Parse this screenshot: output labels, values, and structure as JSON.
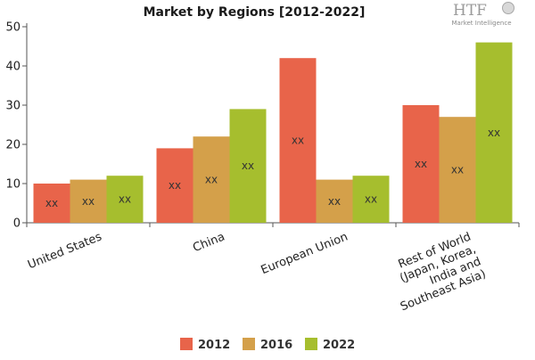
{
  "logo": {
    "mark": "HTF",
    "tagline": "Market Intelligence"
  },
  "chart_data": {
    "type": "bar",
    "title": "Market by Regions [2012-2022]",
    "categories": [
      [
        "United States"
      ],
      [
        "China"
      ],
      [
        "European Union"
      ],
      [
        "Rest of World",
        "(Japan, Korea,",
        "India and",
        "Southeast Asia)"
      ]
    ],
    "series": [
      {
        "name": "2012",
        "color": "#e8644a",
        "values": [
          10,
          19,
          42,
          30
        ],
        "labels": [
          "xx",
          "xx",
          "xx",
          "xx"
        ]
      },
      {
        "name": "2016",
        "color": "#d4a04a",
        "values": [
          11,
          22,
          11,
          27
        ],
        "labels": [
          "xx",
          "xx",
          "xx",
          "xx"
        ]
      },
      {
        "name": "2022",
        "color": "#a6be2e",
        "values": [
          12,
          29,
          12,
          46
        ],
        "labels": [
          "xx",
          "xx",
          "xx",
          "xx"
        ]
      }
    ],
    "ylim": [
      0,
      50
    ],
    "yticks": [
      0,
      10,
      20,
      30,
      40,
      50
    ],
    "xlabel": "",
    "ylabel": "",
    "grid": false,
    "legend_position": "bottom"
  }
}
